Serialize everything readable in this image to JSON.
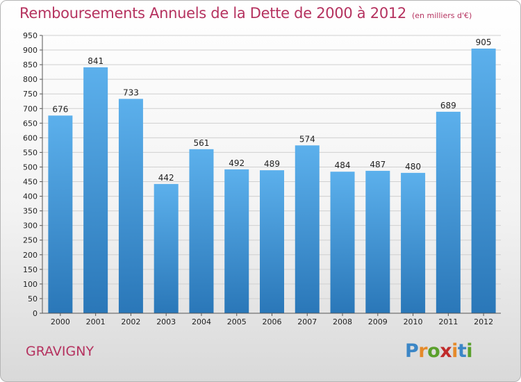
{
  "title": "Remboursements Annuels de la Dette de 2000 à 2012",
  "subtitle": "(en milliers d'€)",
  "location": "GRAVIGNY",
  "logo": {
    "text": "Proxiti",
    "letters": [
      {
        "ch": "P",
        "color": "#3b86c6"
      },
      {
        "ch": "r",
        "color": "#e58a2a"
      },
      {
        "ch": "o",
        "color": "#5aa02c"
      },
      {
        "ch": "x",
        "color": "#c02b2b"
      },
      {
        "ch": "i",
        "color": "#e58a2a"
      },
      {
        "ch": "t",
        "color": "#3b86c6"
      },
      {
        "ch": "i",
        "color": "#5aa02c"
      }
    ]
  },
  "colors": {
    "title": "#b5325f",
    "bar_light": "#5cb0ec",
    "bar_dark": "#2a77b8",
    "grid": "#d0d0d0",
    "axis_text": "#222222"
  },
  "chart_data": {
    "type": "bar",
    "categories": [
      "2000",
      "2001",
      "2002",
      "2003",
      "2004",
      "2005",
      "2006",
      "2007",
      "2008",
      "2009",
      "2010",
      "2011",
      "2012"
    ],
    "values": [
      676,
      841,
      733,
      442,
      561,
      492,
      489,
      574,
      484,
      487,
      480,
      689,
      905
    ],
    "ylim": [
      0,
      950
    ],
    "ytick_step": 50,
    "grid": true
  }
}
